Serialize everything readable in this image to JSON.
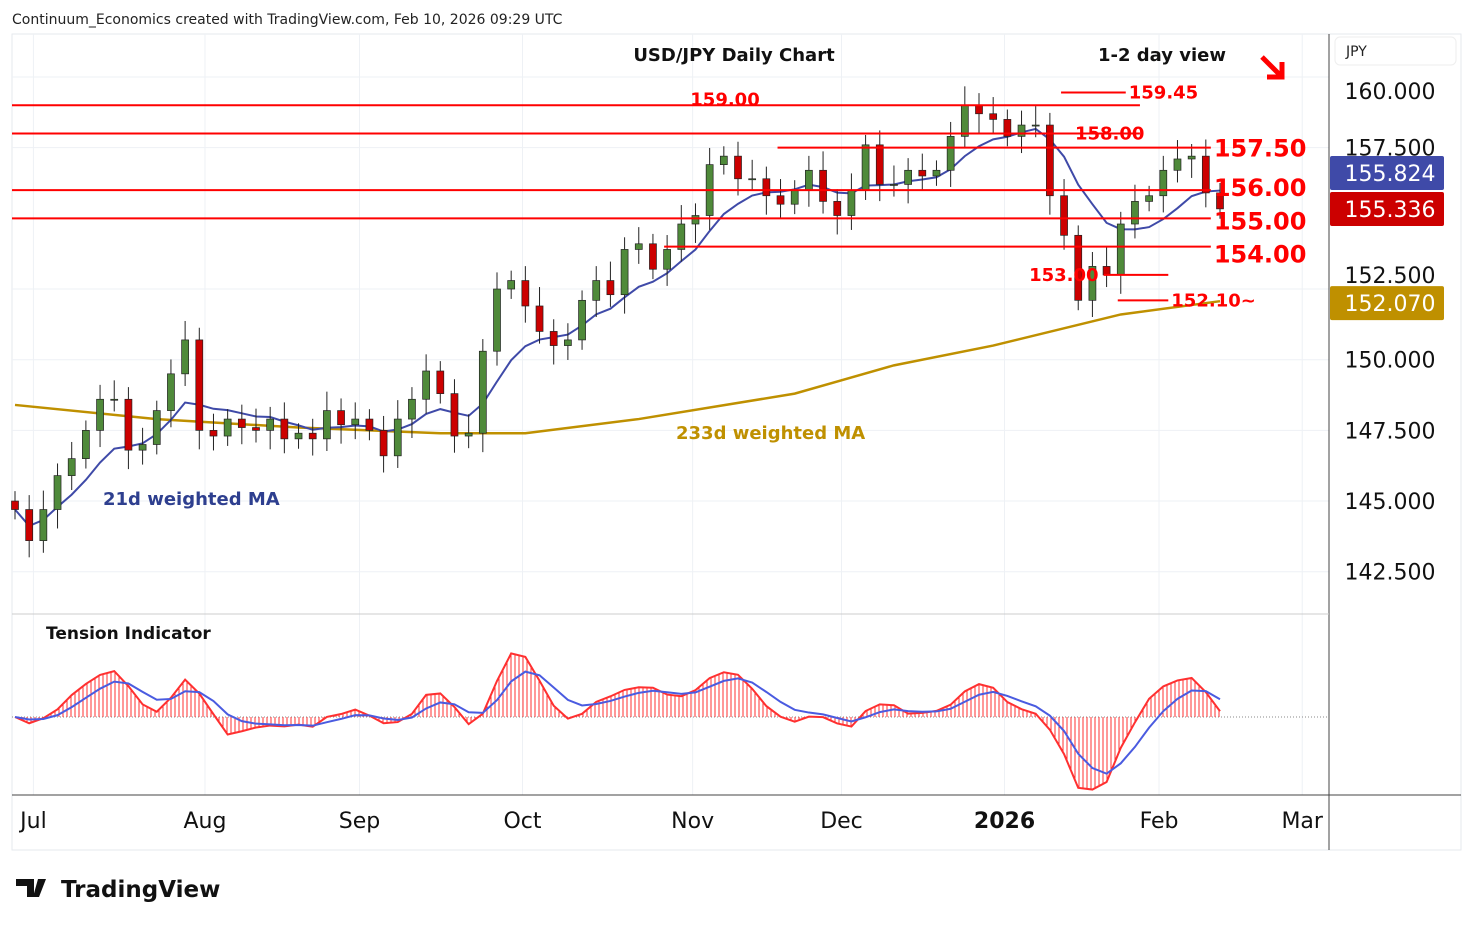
{
  "header": {
    "credit": "Continuum_Economics created with TradingView.com, Feb 10, 2026 09:29 UTC"
  },
  "chart_title": "USD/JPY Daily Chart",
  "view_label": "1-2 day view",
  "currency_label": "JPY",
  "logo_text": "TradingView",
  "colors": {
    "up": "#4f8a3a",
    "down": "#cc0000",
    "level": "#ff0000",
    "ma21": "#3f4aa8",
    "ma233": "#bf9000"
  },
  "chart_data": {
    "type": "candlestick",
    "title": "USD/JPY Daily Chart",
    "ylim": [
      141.3,
      161
    ],
    "price_ticks": [
      "160.000",
      "157.500",
      "152.500",
      "150.000",
      "147.500",
      "145.000",
      "142.500"
    ],
    "price_tick_values": [
      160,
      157.5,
      152.5,
      150,
      147.5,
      145,
      142.5
    ],
    "x_ticks": [
      {
        "label": "Jul",
        "i": 1.3
      },
      {
        "label": "Aug",
        "i": 13.4
      },
      {
        "label": "Sep",
        "i": 24.3
      },
      {
        "label": "Oct",
        "i": 35.8
      },
      {
        "label": "Nov",
        "i": 47.8
      },
      {
        "label": "Dec",
        "i": 58.3
      },
      {
        "label": "2026",
        "i": 69.8
      },
      {
        "label": "Feb",
        "i": 80.7
      },
      {
        "label": "Mar",
        "i": 90.8
      }
    ],
    "closes": [
      144.7,
      143.6,
      144.7,
      145.9,
      146.5,
      147.5,
      148.6,
      148.6,
      146.8,
      147.0,
      148.2,
      149.5,
      150.7,
      147.5,
      147.3,
      147.9,
      147.6,
      147.5,
      147.9,
      147.2,
      147.4,
      147.2,
      148.2,
      147.7,
      147.9,
      147.5,
      146.6,
      147.9,
      148.6,
      149.6,
      148.8,
      147.3,
      147.4,
      150.3,
      152.5,
      152.8,
      151.9,
      151.0,
      150.5,
      150.7,
      152.1,
      152.8,
      152.3,
      153.9,
      154.1,
      153.2,
      153.9,
      154.8,
      155.1,
      156.9,
      157.2,
      156.4,
      156.4,
      155.8,
      155.5,
      156.0,
      156.7,
      155.6,
      155.1,
      156.0,
      157.6,
      156.2,
      156.2,
      156.7,
      156.5,
      156.7,
      157.9,
      159.0,
      158.7,
      158.5,
      157.9,
      158.3,
      158.3,
      155.8,
      154.4,
      152.1,
      153.3,
      153.0,
      154.8,
      155.6,
      155.8,
      156.7,
      157.1,
      157.2,
      155.9,
      155.336
    ],
    "ma233_keypoints": [
      [
        0,
        148.4
      ],
      [
        10,
        147.9
      ],
      [
        20,
        147.6
      ],
      [
        30,
        147.4
      ],
      [
        36,
        147.4
      ],
      [
        44,
        147.9
      ],
      [
        55,
        148.8
      ],
      [
        62,
        149.8
      ],
      [
        69,
        150.5
      ],
      [
        78,
        151.6
      ],
      [
        85,
        152.07
      ]
    ],
    "levels": [
      {
        "label": "159.45",
        "value": 159.45,
        "from": 74,
        "to": 78
      },
      {
        "label": "159.00",
        "value": 159.0,
        "from": 0,
        "to": 79
      },
      {
        "label": "158.00",
        "value": 158.0,
        "from": 0,
        "to": 79
      },
      {
        "label": "157.50",
        "value": 157.5,
        "from": 54,
        "to": 84
      },
      {
        "label": "156.00",
        "value": 156.0,
        "from": 0,
        "to": 84
      },
      {
        "label": "155.00",
        "value": 155.0,
        "from": 0,
        "to": 84
      },
      {
        "label": "154.00",
        "value": 154.0,
        "from": 46,
        "to": 84
      },
      {
        "label": "153.00",
        "value": 153.0,
        "from": 77,
        "to": 81
      },
      {
        "label": "152.10~",
        "value": 152.1,
        "from": 78,
        "to": 81
      }
    ],
    "price_badges": [
      {
        "label": "155.824",
        "value": 155.824,
        "color": "#3f4aa8"
      },
      {
        "label": "155.336",
        "value": 155.336,
        "color": "#cc0000"
      },
      {
        "label": "152.070",
        "value": 152.07,
        "color": "#bf9000"
      }
    ],
    "annotations": {
      "ma21": "21d weighted MA",
      "ma233": "233d weighted MA",
      "tension": "Tension Indicator"
    }
  }
}
